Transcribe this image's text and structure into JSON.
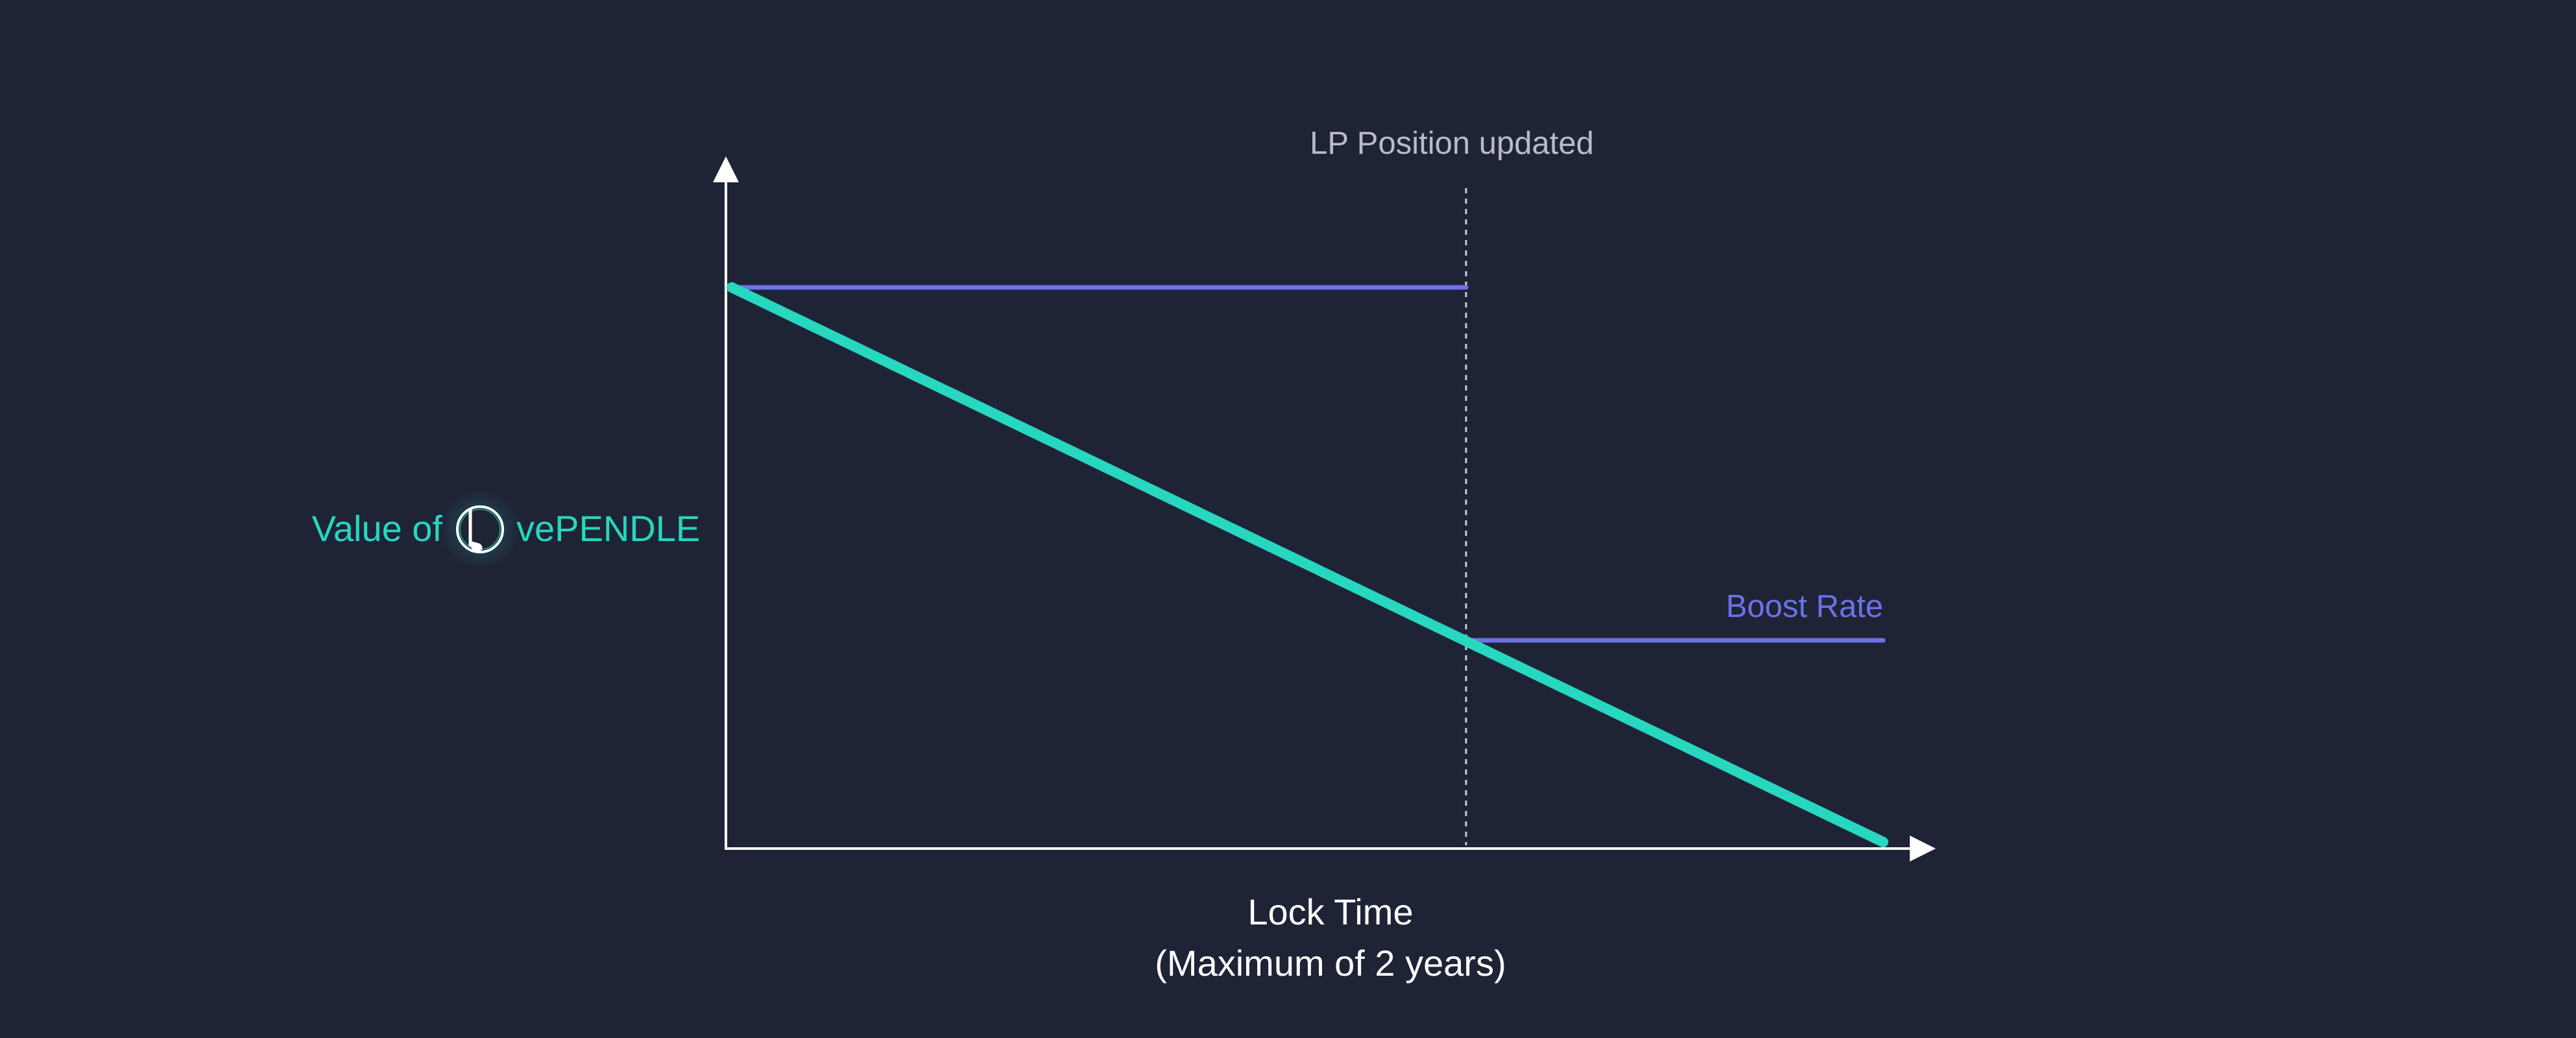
{
  "colors": {
    "background": "#1f2336",
    "axis": "#ffffff",
    "vependle_line": "#27d7bf",
    "boost_rate_line": "#6c72e8",
    "marker_line": "#c9cbd4",
    "muted_text": "#b9bcc7"
  },
  "annotations": {
    "marker_label": "LP Position updated",
    "boost_rate_label": "Boost Rate"
  },
  "y_axis": {
    "label_prefix": "Value of",
    "label_suffix": "vePENDLE",
    "icon": "pendle-logo-icon"
  },
  "x_axis": {
    "title": "Lock Time",
    "subtitle": "(Maximum of 2 years)"
  }
}
